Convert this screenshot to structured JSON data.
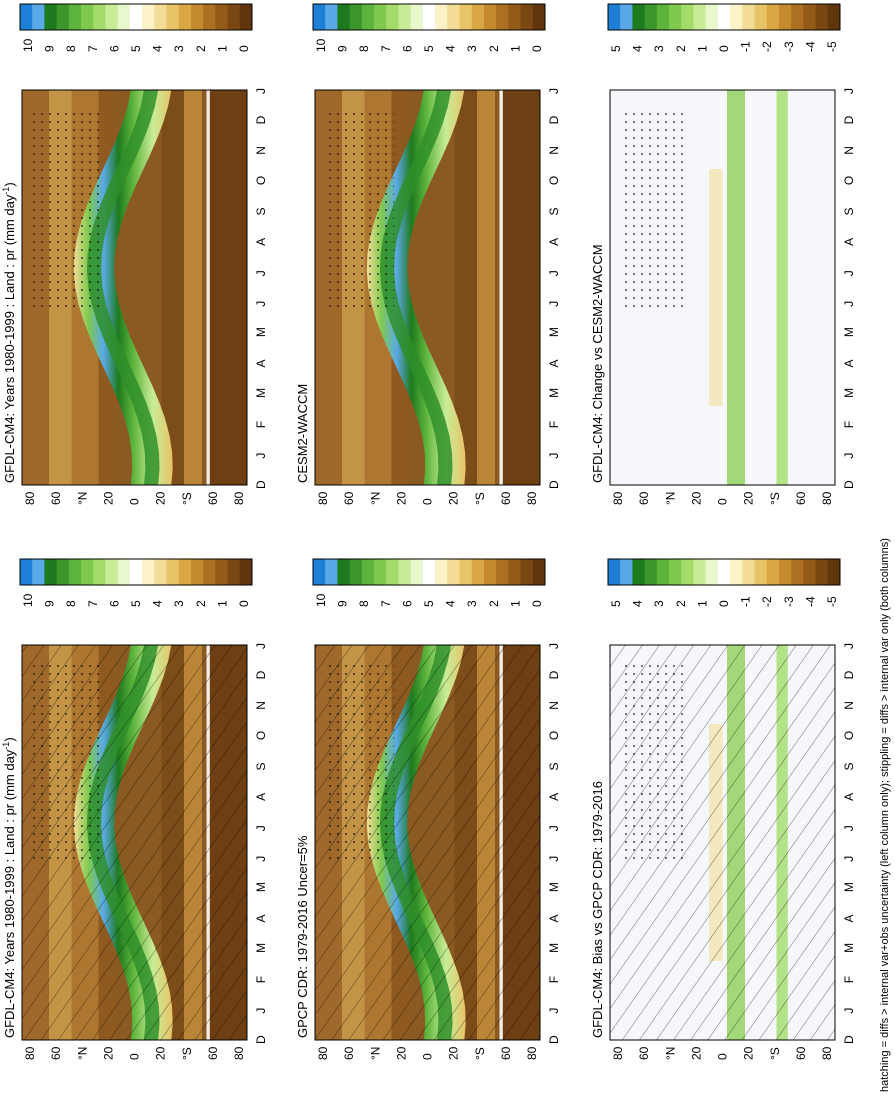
{
  "figure": {
    "footnote": "hatching = diffs > internal var+obs uncertainty (left column only); stippling = diffs > internal var only (both columns)"
  },
  "scales": {
    "absolute": {
      "ticks": [
        "10",
        "9",
        "8",
        "7",
        "6",
        "5",
        "4",
        "3",
        "2",
        "1",
        "0"
      ],
      "colors": [
        "#1e7fd6",
        "#5aa9e6",
        "#1e7a1e",
        "#3c962c",
        "#5db43c",
        "#7fc94f",
        "#a3dc6a",
        "#c8ec96",
        "#e8f7cc",
        "#ffffff",
        "#fbf2c8",
        "#f3dd96",
        "#e8c468",
        "#d9a744",
        "#c58a2e",
        "#ad7020",
        "#935a18",
        "#7a4612",
        "#62360d"
      ]
    },
    "difference": {
      "ticks": [
        "5",
        "4",
        "3",
        "2",
        "1",
        "0",
        "-1",
        "-2",
        "-3",
        "-4",
        "-5"
      ],
      "colors": [
        "#1e7fd6",
        "#5aa9e6",
        "#1e7a1e",
        "#3c962c",
        "#5db43c",
        "#7fc94f",
        "#a3dc6a",
        "#c8ec96",
        "#e8f7cc",
        "#ffffff",
        "#fbf2c8",
        "#f3dd96",
        "#e8c468",
        "#d9a744",
        "#c58a2e",
        "#ad7020",
        "#935a18",
        "#7a4612",
        "#62360d"
      ]
    }
  },
  "axes": {
    "months": [
      "D",
      "J",
      "F",
      "M",
      "A",
      "M",
      "J",
      "J",
      "A",
      "S",
      "O",
      "N",
      "D",
      "J"
    ],
    "lats": [
      "80",
      "60",
      "°N",
      "20",
      "0",
      "20",
      "°S",
      "60",
      "80"
    ]
  },
  "chart_data": [
    {
      "type": "heatmap",
      "panel": "left-top",
      "title": "GFDL-CM4: Years 1980-1999 : Land : pr (mm day",
      "title_sup": "-1",
      "title_end": ")",
      "x": "month (D–J)",
      "y": "latitude (80°N–80°S)",
      "scale": "absolute",
      "overlays": [
        "hatching",
        "stippling"
      ]
    },
    {
      "type": "heatmap",
      "panel": "left-middle",
      "title": "GPCP CDR: 1979-2016 Uncer=5%",
      "scale": "absolute",
      "overlays": [
        "hatching",
        "stippling"
      ]
    },
    {
      "type": "heatmap",
      "panel": "left-bottom",
      "title": "GFDL-CM4: Bias vs GPCP CDR: 1979-2016",
      "scale": "difference",
      "overlays": [
        "hatching",
        "stippling"
      ]
    },
    {
      "type": "heatmap",
      "panel": "right-top",
      "title": "GFDL-CM4: Years 1980-1999 : Land : pr (mm day",
      "title_sup": "-1",
      "title_end": ")",
      "scale": "absolute",
      "overlays": [
        "stippling"
      ]
    },
    {
      "type": "heatmap",
      "panel": "right-middle",
      "title": "CESM2-WACCM",
      "scale": "absolute",
      "overlays": [
        "stippling"
      ]
    },
    {
      "type": "heatmap",
      "panel": "right-bottom",
      "title": "GFDL-CM4: Change vs CESM2-WACCM",
      "scale": "difference",
      "overlays": [
        "stippling"
      ]
    }
  ]
}
